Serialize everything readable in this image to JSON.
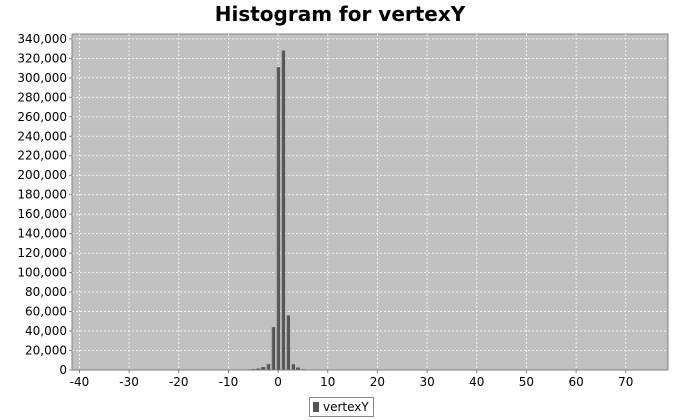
{
  "chart_data": {
    "type": "bar",
    "title": "Histogram for vertexY",
    "xlabel": "",
    "ylabel": "",
    "xlim": [
      -41.5,
      78.5
    ],
    "ylim": [
      0,
      345000
    ],
    "x_ticks": [
      -40,
      -30,
      -20,
      -10,
      0,
      10,
      20,
      30,
      40,
      50,
      60,
      70
    ],
    "y_ticks": [
      0,
      20000,
      40000,
      60000,
      80000,
      100000,
      120000,
      140000,
      160000,
      180000,
      200000,
      220000,
      240000,
      260000,
      280000,
      300000,
      320000,
      340000
    ],
    "grid": true,
    "legend_position": "bottom-center",
    "bin_width": 1,
    "series": [
      {
        "name": "vertexY",
        "color": "#555555",
        "x": [
          -7,
          -6,
          -5,
          -4,
          -3,
          -2,
          -1,
          0,
          1,
          2,
          3,
          4,
          5,
          6
        ],
        "values": [
          300,
          600,
          1000,
          1500,
          3000,
          6000,
          44000,
          311000,
          328000,
          56000,
          6000,
          2500,
          800,
          300
        ]
      }
    ]
  }
}
